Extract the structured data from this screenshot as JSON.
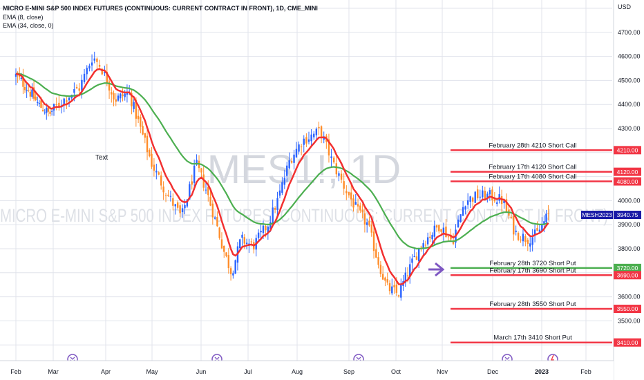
{
  "header": {
    "title": "MICRO E-MINI S&P 500 INDEX FUTURES (CONTINUOUS: CURRENT CONTRACT IN FRONT), 1D, CME_MINI",
    "ema_fast": "EMA (8, close)",
    "ema_slow": "EMA (34, close, 0)"
  },
  "watermark": {
    "symbol": "MES1!, 1D",
    "name": "MICRO E-MINI S&P 500 INDEX FUTURES (CONTINUOUS: CURRENT CONTRACT IN FRONT)"
  },
  "annotation_text": "Text",
  "currency": "USD",
  "colors": {
    "up": "#2962ff",
    "down": "#ff8c29",
    "ema_fast": "#f23030",
    "ema_slow": "#4caf50",
    "call_level": "#f23645",
    "put_green": "#4caf50",
    "price_tag": "#1a1aa6",
    "arrow": "#7e57c2",
    "grid": "#e0e3eb"
  },
  "chart_data": {
    "type": "candlestick",
    "x_ticks": [
      "Feb",
      "Mar",
      "Apr",
      "May",
      "Jun",
      "Jul",
      "Aug",
      "Sep",
      "Oct",
      "Nov",
      "Dec",
      "2023",
      "Feb"
    ],
    "y_ticks": [
      "4700.00",
      "4600.00",
      "4500.00",
      "4400.00",
      "4300.00",
      "4000.00",
      "3900.00",
      "3800.00",
      "3600.00",
      "3500.00"
    ],
    "ylim": [
      3300,
      4800
    ],
    "last_price": {
      "symbol": "MESH2023",
      "value": "3940.75"
    },
    "close_path": [
      {
        "m": 0.0,
        "v": 4520
      },
      {
        "m": 0.3,
        "v": 4470
      },
      {
        "m": 0.6,
        "v": 4400
      },
      {
        "m": 0.9,
        "v": 4360
      },
      {
        "m": 1.2,
        "v": 4420
      },
      {
        "m": 1.5,
        "v": 4470
      },
      {
        "m": 1.75,
        "v": 4600
      },
      {
        "m": 1.9,
        "v": 4560
      },
      {
        "m": 2.2,
        "v": 4420
      },
      {
        "m": 2.5,
        "v": 4450
      },
      {
        "m": 2.75,
        "v": 4300
      },
      {
        "m": 3.0,
        "v": 4150
      },
      {
        "m": 3.3,
        "v": 4030
      },
      {
        "m": 3.6,
        "v": 3930
      },
      {
        "m": 3.9,
        "v": 4150
      },
      {
        "m": 4.1,
        "v": 4050
      },
      {
        "m": 4.3,
        "v": 3920
      },
      {
        "m": 4.5,
        "v": 3780
      },
      {
        "m": 4.65,
        "v": 3700
      },
      {
        "m": 4.85,
        "v": 3840
      },
      {
        "m": 5.1,
        "v": 3810
      },
      {
        "m": 5.4,
        "v": 3900
      },
      {
        "m": 5.6,
        "v": 4000
      },
      {
        "m": 5.85,
        "v": 4170
      },
      {
        "m": 6.1,
        "v": 4250
      },
      {
        "m": 6.45,
        "v": 4290
      },
      {
        "m": 6.7,
        "v": 4150
      },
      {
        "m": 6.95,
        "v": 4040
      },
      {
        "m": 7.2,
        "v": 3950
      },
      {
        "m": 7.4,
        "v": 3900
      },
      {
        "m": 7.6,
        "v": 3760
      },
      {
        "m": 7.8,
        "v": 3640
      },
      {
        "m": 8.05,
        "v": 3610
      },
      {
        "m": 8.3,
        "v": 3720
      },
      {
        "m": 8.55,
        "v": 3820
      },
      {
        "m": 8.75,
        "v": 3860
      },
      {
        "m": 8.95,
        "v": 3900
      },
      {
        "m": 9.2,
        "v": 3830
      },
      {
        "m": 9.45,
        "v": 4000
      },
      {
        "m": 9.7,
        "v": 4020
      },
      {
        "m": 9.95,
        "v": 4020
      },
      {
        "m": 10.2,
        "v": 4000
      },
      {
        "m": 10.45,
        "v": 3870
      },
      {
        "m": 10.7,
        "v": 3840
      },
      {
        "m": 10.9,
        "v": 3860
      },
      {
        "m": 11.05,
        "v": 3910
      },
      {
        "m": 11.15,
        "v": 3940
      }
    ],
    "levels": [
      {
        "label": "February 28th 4210 Short Call",
        "value": 4210,
        "price": "4210.00",
        "color": "red"
      },
      {
        "label": "February 17th 4120 Short Call",
        "value": 4120,
        "price": "4120.00",
        "color": "red"
      },
      {
        "label": "February 17th 4080 Short Call",
        "value": 4080,
        "price": "4080.00",
        "color": "red"
      },
      {
        "label": "February 28th 3720 Short Put",
        "value": 3720,
        "price": "3720.00",
        "color": "green"
      },
      {
        "label": "February 17th 3690 Short Put",
        "value": 3690,
        "price": "3690.00",
        "color": "red"
      },
      {
        "label": "February 28th 3550 Short Put",
        "value": 3550,
        "price": "3550.00",
        "color": "red"
      },
      {
        "label": "March 17th 3410 Short Put",
        "value": 3410,
        "price": "3410.00",
        "color": "red"
      }
    ]
  }
}
